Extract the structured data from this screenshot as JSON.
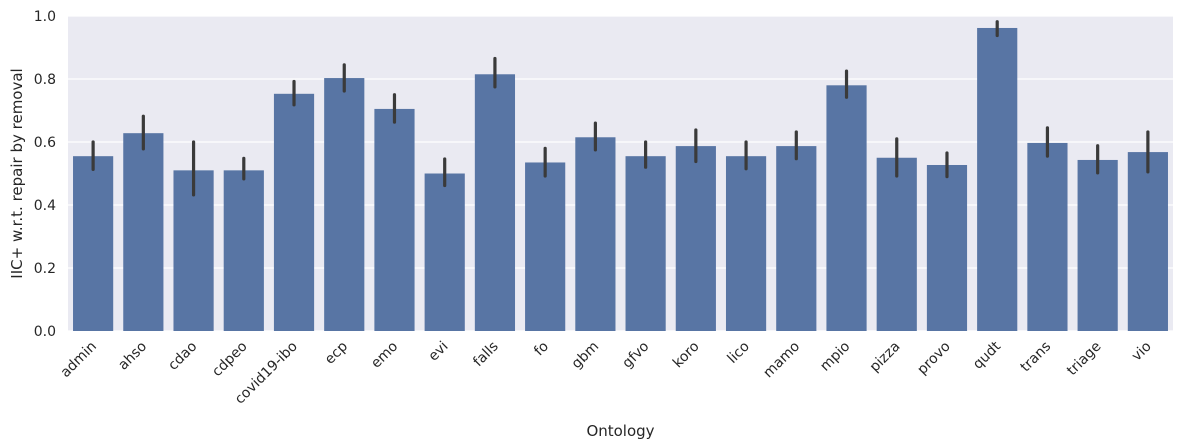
{
  "chart_data": {
    "type": "bar",
    "title": "",
    "xlabel": "Ontology",
    "ylabel": "IIC+ w.r.t. repair by removal",
    "ylim": [
      0,
      1.0
    ],
    "yticks": [
      0.0,
      0.2,
      0.4,
      0.6,
      0.8,
      1.0
    ],
    "ytick_labels": [
      "0.0",
      "0.2",
      "0.4",
      "0.6",
      "0.8",
      "1.0"
    ],
    "grid": true,
    "legend": "none",
    "categories": [
      "admin",
      "ahso",
      "cdao",
      "cdpeo",
      "covid19-ibo",
      "ecp",
      "emo",
      "evi",
      "falls",
      "fo",
      "gbm",
      "gfvo",
      "koro",
      "lico",
      "mamo",
      "mpio",
      "pizza",
      "provo",
      "qudt",
      "trans",
      "triage",
      "vio"
    ],
    "values": [
      0.555,
      0.628,
      0.51,
      0.51,
      0.753,
      0.803,
      0.705,
      0.5,
      0.815,
      0.535,
      0.615,
      0.555,
      0.587,
      0.555,
      0.587,
      0.78,
      0.55,
      0.527,
      0.962,
      0.597,
      0.543,
      0.568
    ],
    "error_low": [
      0.513,
      0.578,
      0.432,
      0.483,
      0.718,
      0.762,
      0.663,
      0.462,
      0.775,
      0.492,
      0.575,
      0.52,
      0.538,
      0.515,
      0.547,
      0.742,
      0.492,
      0.49,
      0.938,
      0.555,
      0.502,
      0.505
    ],
    "error_high": [
      0.6,
      0.682,
      0.6,
      0.548,
      0.792,
      0.845,
      0.75,
      0.546,
      0.865,
      0.58,
      0.66,
      0.6,
      0.638,
      0.6,
      0.632,
      0.825,
      0.61,
      0.565,
      0.982,
      0.645,
      0.588,
      0.632
    ],
    "colors": {
      "bar": "#5875a4",
      "error_bar": "#3a3a3a",
      "plot_background": "#eaeaf2",
      "grid": "#ffffff",
      "text": "#262626"
    }
  }
}
